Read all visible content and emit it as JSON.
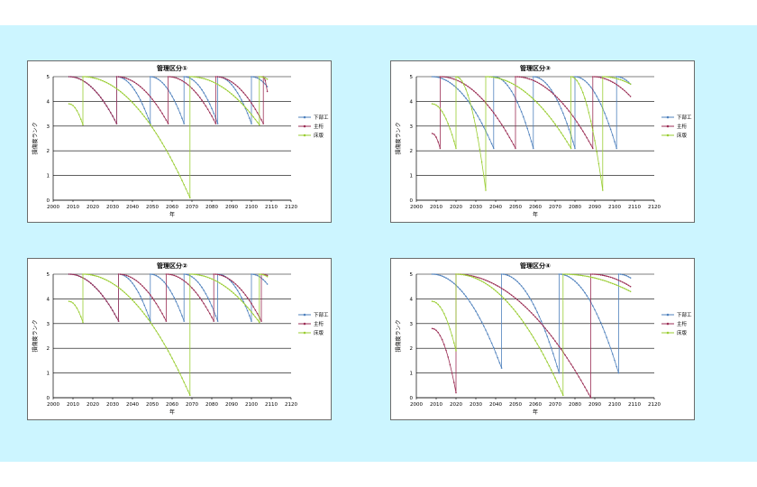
{
  "shared": {
    "xlabel": "年",
    "ylabel": "損傷度ランク",
    "xticks": [
      "2000",
      "2010",
      "2020",
      "2030",
      "2040",
      "2050",
      "2060",
      "2070",
      "2080",
      "2090",
      "2100",
      "2110",
      "2120"
    ],
    "yticks": [
      "0",
      "1",
      "2",
      "3",
      "4",
      "5"
    ],
    "legend": [
      "下部工",
      "主桁",
      "床版"
    ],
    "colors": [
      "#4f81bd",
      "#9b2e55",
      "#9acd32"
    ]
  },
  "chart_data": [
    {
      "type": "line",
      "title": "管理区分①",
      "xlabel": "年",
      "ylabel": "損傷度ランク",
      "xlim": [
        2000,
        2120
      ],
      "ylim": [
        0,
        5
      ],
      "grid": "horizontal",
      "legend_position": "right",
      "series": [
        {
          "name": "下部工",
          "color": "#4f81bd",
          "segments": [
            {
              "x": [
                2008,
                2032
              ],
              "y": [
                5,
                3.1
              ]
            },
            {
              "x": [
                2032,
                2049
              ],
              "y": [
                5,
                3.1
              ]
            },
            {
              "x": [
                2049,
                2066
              ],
              "y": [
                5,
                3.1
              ]
            },
            {
              "x": [
                2066,
                2083
              ],
              "y": [
                5,
                3.1
              ]
            },
            {
              "x": [
                2083,
                2100
              ],
              "y": [
                5,
                3.1
              ]
            },
            {
              "x": [
                2100,
                2108
              ],
              "y": [
                5,
                4.6
              ]
            }
          ]
        },
        {
          "name": "主桁",
          "color": "#9b2e55",
          "segments": [
            {
              "x": [
                2008,
                2032
              ],
              "y": [
                5,
                3.1
              ]
            },
            {
              "x": [
                2032,
                2058
              ],
              "y": [
                5,
                3.1
              ]
            },
            {
              "x": [
                2058,
                2082
              ],
              "y": [
                5,
                3.1
              ]
            },
            {
              "x": [
                2082,
                2106
              ],
              "y": [
                5,
                3.1
              ]
            },
            {
              "x": [
                2106,
                2108
              ],
              "y": [
                5,
                4.4
              ]
            }
          ]
        },
        {
          "name": "床版",
          "color": "#9acd32",
          "segments": [
            {
              "x": [
                2008,
                2015
              ],
              "y": [
                3.9,
                3.05
              ]
            },
            {
              "x": [
                2015,
                2069
              ],
              "y": [
                5,
                0.1
              ]
            },
            {
              "x": [
                2069,
                2104
              ],
              "y": [
                5,
                3.05
              ]
            },
            {
              "x": [
                2104,
                2108
              ],
              "y": [
                5,
                4.9
              ]
            }
          ]
        }
      ]
    },
    {
      "type": "line",
      "title": "管理区分③",
      "xlabel": "年",
      "ylabel": "損傷度ランク",
      "xlim": [
        2000,
        2120
      ],
      "ylim": [
        0,
        5
      ],
      "grid": "horizontal",
      "legend_position": "right",
      "series": [
        {
          "name": "下部工",
          "color": "#4f81bd",
          "segments": [
            {
              "x": [
                2008,
                2039
              ],
              "y": [
                5,
                2.1
              ]
            },
            {
              "x": [
                2039,
                2059
              ],
              "y": [
                5,
                2.1
              ]
            },
            {
              "x": [
                2059,
                2080
              ],
              "y": [
                5,
                2.1
              ]
            },
            {
              "x": [
                2080,
                2101
              ],
              "y": [
                5,
                2.1
              ]
            },
            {
              "x": [
                2101,
                2108
              ],
              "y": [
                5,
                4.7
              ]
            }
          ]
        },
        {
          "name": "主桁",
          "color": "#9b2e55",
          "segments": [
            {
              "x": [
                2008,
                2012
              ],
              "y": [
                2.7,
                2.1
              ]
            },
            {
              "x": [
                2012,
                2050
              ],
              "y": [
                5,
                2.1
              ]
            },
            {
              "x": [
                2050,
                2089
              ],
              "y": [
                5,
                2.1
              ]
            },
            {
              "x": [
                2089,
                2108
              ],
              "y": [
                5,
                4.2
              ]
            }
          ]
        },
        {
          "name": "床版",
          "color": "#9acd32",
          "segments": [
            {
              "x": [
                2008,
                2020
              ],
              "y": [
                3.9,
                2.1
              ]
            },
            {
              "x": [
                2020,
                2035
              ],
              "y": [
                5,
                0.4
              ]
            },
            {
              "x": [
                2035,
                2078
              ],
              "y": [
                5,
                2.1
              ]
            },
            {
              "x": [
                2078,
                2094
              ],
              "y": [
                5,
                0.4
              ]
            },
            {
              "x": [
                2094,
                2108
              ],
              "y": [
                5,
                4.7
              ]
            }
          ]
        }
      ]
    },
    {
      "type": "line",
      "title": "管理区分②",
      "xlabel": "年",
      "ylabel": "損傷度ランク",
      "xlim": [
        2000,
        2120
      ],
      "ylim": [
        0,
        5
      ],
      "grid": "horizontal",
      "legend_position": "right",
      "series": [
        {
          "name": "下部工",
          "color": "#4f81bd",
          "segments": [
            {
              "x": [
                2008,
                2033
              ],
              "y": [
                5,
                3.1
              ]
            },
            {
              "x": [
                2033,
                2049
              ],
              "y": [
                5,
                3.1
              ]
            },
            {
              "x": [
                2049,
                2066
              ],
              "y": [
                5,
                3.1
              ]
            },
            {
              "x": [
                2066,
                2083
              ],
              "y": [
                5,
                3.1
              ]
            },
            {
              "x": [
                2083,
                2100
              ],
              "y": [
                5,
                3.1
              ]
            },
            {
              "x": [
                2100,
                2108
              ],
              "y": [
                5,
                4.6
              ]
            }
          ]
        },
        {
          "name": "主桁",
          "color": "#9b2e55",
          "segments": [
            {
              "x": [
                2008,
                2033
              ],
              "y": [
                5,
                3.1
              ]
            },
            {
              "x": [
                2033,
                2057
              ],
              "y": [
                5,
                3.1
              ]
            },
            {
              "x": [
                2057,
                2081
              ],
              "y": [
                5,
                3.1
              ]
            },
            {
              "x": [
                2081,
                2105
              ],
              "y": [
                5,
                3.1
              ]
            },
            {
              "x": [
                2105,
                2108
              ],
              "y": [
                5,
                4.95
              ]
            }
          ]
        },
        {
          "name": "床版",
          "color": "#9acd32",
          "segments": [
            {
              "x": [
                2008,
                2015
              ],
              "y": [
                3.9,
                3.05
              ]
            },
            {
              "x": [
                2015,
                2069
              ],
              "y": [
                5,
                0.1
              ]
            },
            {
              "x": [
                2069,
                2104
              ],
              "y": [
                5,
                3.05
              ]
            },
            {
              "x": [
                2104,
                2108
              ],
              "y": [
                5,
                4.9
              ]
            }
          ]
        }
      ]
    },
    {
      "type": "line",
      "title": "管理区分④",
      "xlabel": "年",
      "ylabel": "損傷度ランク",
      "xlim": [
        2000,
        2120
      ],
      "ylim": [
        0,
        5
      ],
      "grid": "horizontal",
      "legend_position": "right",
      "series": [
        {
          "name": "下部工",
          "color": "#4f81bd",
          "segments": [
            {
              "x": [
                2008,
                2043
              ],
              "y": [
                5,
                1.2
              ]
            },
            {
              "x": [
                2043,
                2072
              ],
              "y": [
                5,
                1.0
              ]
            },
            {
              "x": [
                2072,
                2102
              ],
              "y": [
                5,
                1.0
              ]
            },
            {
              "x": [
                2102,
                2108
              ],
              "y": [
                5,
                4.85
              ]
            }
          ]
        },
        {
          "name": "主桁",
          "color": "#9b2e55",
          "segments": [
            {
              "x": [
                2008,
                2020
              ],
              "y": [
                2.8,
                0.2
              ]
            },
            {
              "x": [
                2020,
                2088
              ],
              "y": [
                5,
                0.0
              ]
            },
            {
              "x": [
                2088,
                2108
              ],
              "y": [
                5,
                4.5
              ]
            }
          ]
        },
        {
          "name": "床版",
          "color": "#9acd32",
          "segments": [
            {
              "x": [
                2008,
                2020
              ],
              "y": [
                3.9,
                1.9
              ]
            },
            {
              "x": [
                2020,
                2074
              ],
              "y": [
                5,
                0.1
              ]
            },
            {
              "x": [
                2074,
                2108
              ],
              "y": [
                5,
                4.3
              ]
            }
          ]
        }
      ]
    }
  ]
}
